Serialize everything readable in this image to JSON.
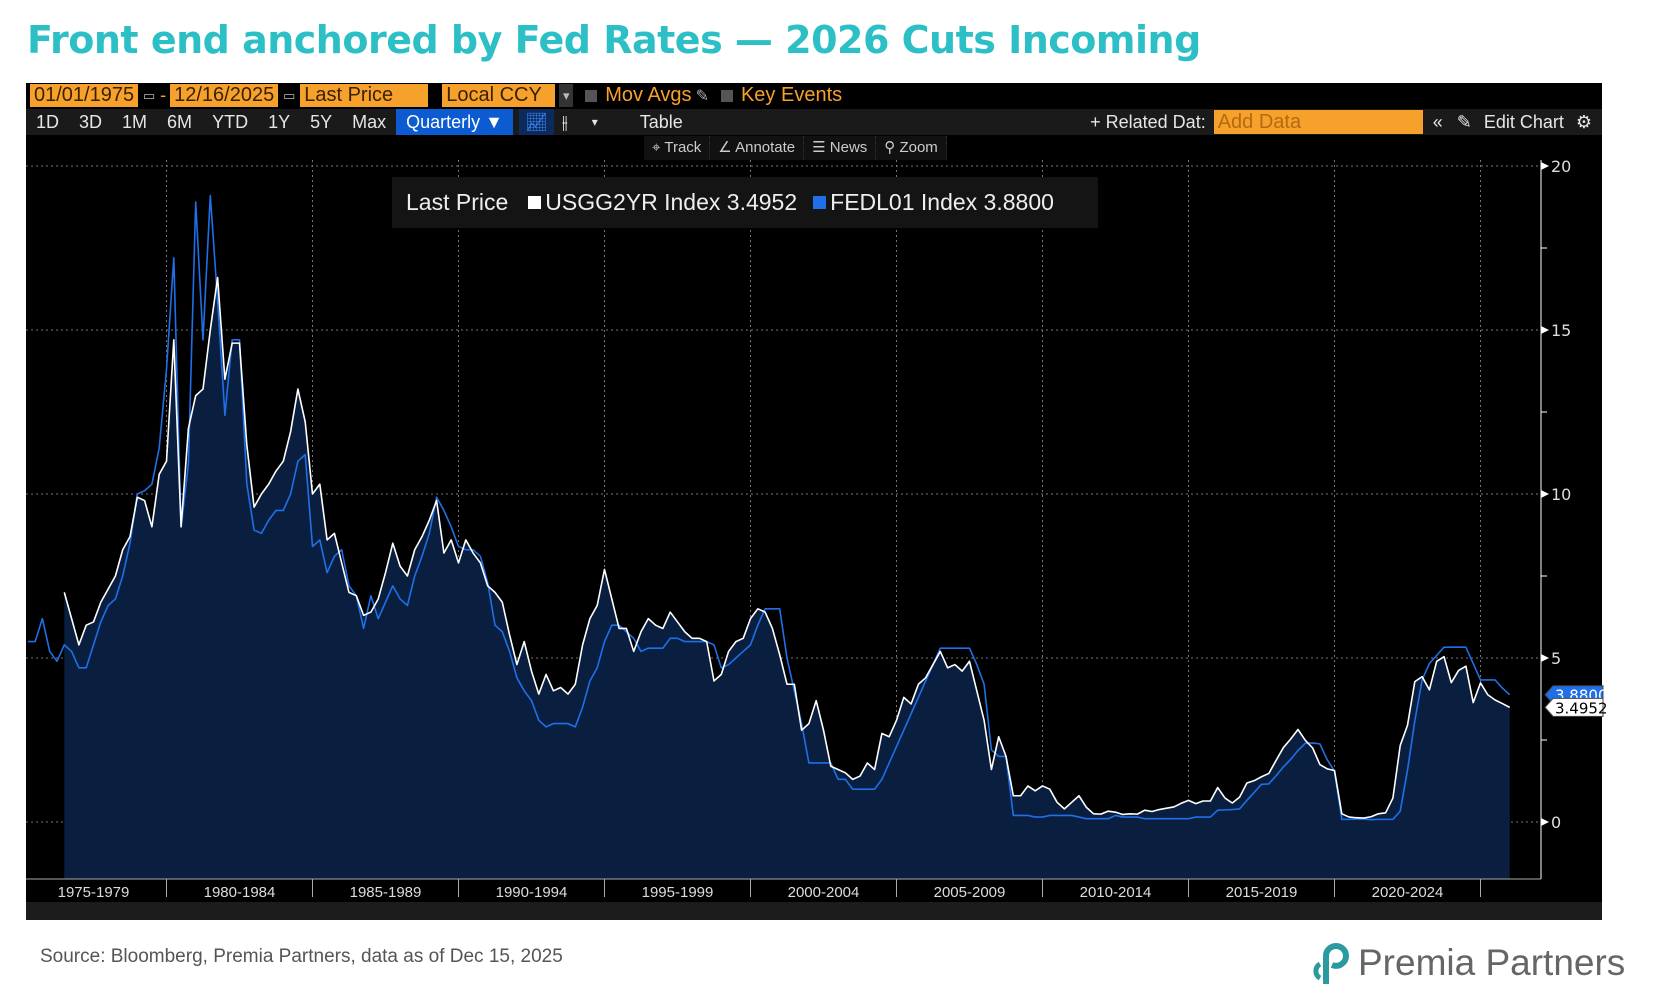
{
  "title": "Front end anchored by Fed Rates — 2026 Cuts Incoming",
  "toolbar": {
    "start_date": "01/01/1975",
    "end_date": "12/16/2025",
    "date_sep": "-",
    "field": "Last Price",
    "currency": "Local CCY",
    "mov_avgs": "Mov Avgs",
    "key_events": "Key Events",
    "periods": [
      "1D",
      "3D",
      "1M",
      "6M",
      "YTD",
      "1Y",
      "5Y",
      "Max"
    ],
    "frequency": "Quarterly ▼",
    "table": "Table",
    "related_data": "+ Related Dat:",
    "add_data_placeholder": "Add Data",
    "edit_chart": "Edit Chart",
    "tools": [
      "Track",
      "Annotate",
      "News",
      "Zoom"
    ]
  },
  "legend": {
    "label": "Last Price",
    "items": [
      {
        "text": "USGG2YR Index 3.4952",
        "color": "#ffffff"
      },
      {
        "text": "FEDL01 Index 3.8800",
        "color": "#1e6fe8"
      }
    ]
  },
  "price_tags": {
    "fed": "3.8800",
    "two_year": "3.4952"
  },
  "source": "Source: Bloomberg, Premia Partners, data as of Dec 15, 2025",
  "logo": "Premia Partners",
  "chart_data": {
    "type": "line",
    "x_start": "1975Q1",
    "frequency": "quarterly",
    "ylim": [
      -1.8,
      20.5
    ],
    "yticks": [
      0,
      5,
      10,
      15,
      20
    ],
    "grid": true,
    "legend_position": "top-center",
    "x_tick_labels": [
      "1975-1979",
      "1980-1984",
      "1985-1989",
      "1990-1994",
      "1995-1999",
      "2000-2004",
      "2005-2009",
      "2010-2014",
      "2015-2019",
      "2020-2024"
    ],
    "series": [
      {
        "name": "USGG2YR Index",
        "color": "#ffffff",
        "fill": "#0a1f3f",
        "values": [
          null,
          null,
          null,
          null,
          null,
          7.0,
          6.2,
          5.4,
          6.0,
          6.1,
          6.7,
          7.1,
          7.5,
          8.3,
          8.7,
          9.9,
          9.8,
          9.0,
          10.6,
          11.0,
          14.7,
          9.0,
          12.0,
          13.0,
          13.2,
          15.0,
          16.6,
          13.5,
          14.6,
          14.6,
          11.5,
          9.6,
          10.0,
          10.3,
          10.7,
          11.0,
          11.9,
          13.2,
          12.2,
          10.0,
          10.3,
          8.6,
          8.8,
          7.9,
          7.0,
          6.9,
          6.3,
          6.4,
          6.8,
          7.6,
          8.5,
          7.8,
          7.5,
          8.3,
          8.7,
          9.2,
          9.8,
          8.2,
          8.6,
          7.9,
          8.6,
          8.2,
          7.9,
          7.2,
          7.0,
          6.7,
          5.7,
          4.8,
          5.5,
          4.6,
          3.9,
          4.5,
          4.0,
          4.1,
          3.9,
          4.2,
          5.4,
          6.2,
          6.6,
          7.7,
          6.8,
          5.9,
          5.9,
          5.2,
          5.8,
          6.2,
          6.0,
          5.9,
          6.4,
          6.1,
          5.8,
          5.6,
          5.6,
          5.5,
          4.3,
          4.5,
          5.2,
          5.5,
          5.6,
          6.2,
          6.5,
          6.4,
          5.9,
          5.1,
          4.2,
          4.2,
          2.8,
          3.0,
          3.7,
          2.8,
          1.7,
          1.6,
          1.5,
          1.3,
          1.4,
          1.8,
          1.6,
          2.7,
          2.6,
          3.1,
          3.8,
          3.6,
          4.2,
          4.4,
          4.8,
          5.2,
          4.7,
          4.8,
          4.6,
          4.9,
          4.0,
          3.1,
          1.6,
          2.6,
          2.0,
          0.8,
          0.8,
          1.1,
          0.95,
          1.1,
          1.0,
          0.6,
          0.4,
          0.6,
          0.8,
          0.45,
          0.25,
          0.24,
          0.33,
          0.3,
          0.23,
          0.25,
          0.24,
          0.36,
          0.32,
          0.38,
          0.42,
          0.46,
          0.57,
          0.66,
          0.56,
          0.64,
          0.64,
          1.05,
          0.73,
          0.58,
          0.76,
          1.19,
          1.26,
          1.38,
          1.48,
          1.88,
          2.27,
          2.53,
          2.82,
          2.49,
          2.26,
          1.75,
          1.62,
          1.57,
          0.25,
          0.15,
          0.13,
          0.12,
          0.16,
          0.25,
          0.28,
          0.73,
          2.33,
          2.95,
          4.28,
          4.43,
          4.03,
          4.9,
          5.04,
          4.25,
          4.62,
          4.75,
          3.64,
          4.24,
          3.88,
          3.72,
          3.61,
          3.4952
        ]
      },
      {
        "name": "FEDL01 Index",
        "color": "#1e6fe8",
        "values": [
          5.5,
          5.5,
          6.2,
          5.2,
          4.9,
          5.4,
          5.2,
          4.7,
          4.7,
          5.4,
          6.1,
          6.6,
          6.8,
          7.5,
          8.5,
          10.0,
          10.1,
          10.3,
          11.4,
          13.8,
          17.2,
          9.0,
          10.9,
          18.9,
          14.7,
          19.1,
          15.9,
          12.4,
          14.7,
          14.7,
          10.3,
          8.9,
          8.8,
          9.2,
          9.5,
          9.5,
          10.0,
          11.0,
          11.2,
          8.4,
          8.6,
          7.6,
          8.1,
          8.3,
          7.2,
          6.9,
          5.9,
          6.9,
          6.2,
          6.7,
          7.2,
          6.8,
          6.6,
          7.5,
          8.1,
          8.8,
          9.9,
          9.5,
          9.0,
          8.4,
          8.3,
          8.3,
          8.1,
          7.3,
          6.0,
          5.8,
          5.2,
          4.4,
          4.0,
          3.7,
          3.1,
          2.9,
          3.0,
          3.0,
          3.0,
          2.9,
          3.5,
          4.3,
          4.7,
          5.5,
          6.0,
          6.0,
          5.8,
          5.6,
          5.2,
          5.3,
          5.3,
          5.3,
          5.6,
          5.6,
          5.5,
          5.5,
          5.5,
          5.5,
          5.4,
          4.7,
          4.8,
          5.0,
          5.2,
          5.4,
          6.0,
          6.5,
          6.5,
          6.5,
          5.0,
          4.0,
          3.0,
          1.8,
          1.8,
          1.8,
          1.8,
          1.3,
          1.3,
          1.0,
          1.0,
          1.0,
          1.0,
          1.3,
          1.8,
          2.3,
          2.8,
          3.3,
          3.8,
          4.3,
          4.8,
          5.3,
          5.3,
          5.3,
          5.3,
          5.3,
          4.8,
          4.2,
          2.2,
          2.0,
          2.0,
          0.2,
          0.2,
          0.2,
          0.15,
          0.15,
          0.2,
          0.2,
          0.2,
          0.2,
          0.15,
          0.1,
          0.1,
          0.1,
          0.1,
          0.2,
          0.15,
          0.15,
          0.15,
          0.1,
          0.1,
          0.1,
          0.1,
          0.1,
          0.1,
          0.1,
          0.15,
          0.15,
          0.15,
          0.36,
          0.37,
          0.38,
          0.4,
          0.66,
          0.9,
          1.15,
          1.16,
          1.41,
          1.68,
          1.91,
          2.18,
          2.4,
          2.41,
          2.38,
          1.9,
          1.55,
          0.08,
          0.08,
          0.09,
          0.09,
          0.07,
          0.08,
          0.08,
          0.08,
          0.33,
          1.58,
          3.08,
          4.33,
          4.83,
          5.08,
          5.33,
          5.33,
          5.33,
          5.33,
          4.83,
          4.33,
          4.33,
          4.33,
          4.08,
          3.88
        ]
      }
    ]
  }
}
